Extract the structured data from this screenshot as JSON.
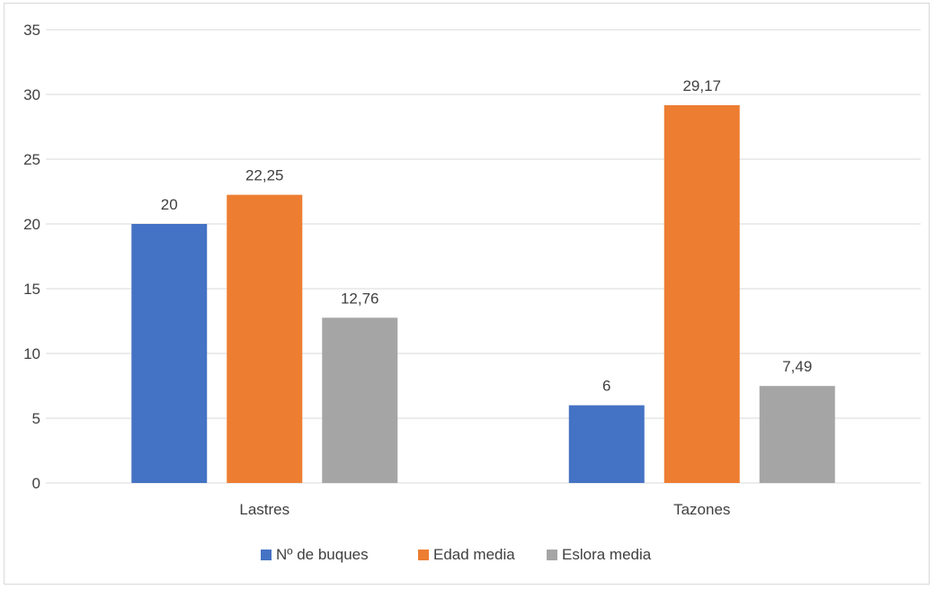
{
  "chart_data": {
    "type": "bar",
    "title": "",
    "xlabel": "",
    "ylabel": "",
    "categories": [
      "Lastres",
      "Tazones"
    ],
    "series": [
      {
        "name": "Nº de buques",
        "values": [
          20,
          6
        ],
        "labels": [
          "20",
          "6"
        ],
        "color": "#4472c4"
      },
      {
        "name": "Edad media",
        "values": [
          22.25,
          29.17
        ],
        "labels": [
          "22,25",
          "29,17"
        ],
        "color": "#ed7d31"
      },
      {
        "name": "Eslora media",
        "values": [
          12.76,
          7.49
        ],
        "labels": [
          "12,76",
          "7,49"
        ],
        "color": "#a5a5a5"
      }
    ],
    "ylim": [
      0,
      35
    ],
    "yticks": [
      0,
      5,
      10,
      15,
      20,
      25,
      30,
      35
    ],
    "ytick_labels": [
      "0",
      "5",
      "10",
      "15",
      "20",
      "25",
      "30",
      "35"
    ],
    "grid": true,
    "legend_position": "bottom"
  },
  "colors": {
    "gridline": "#d9d9d9",
    "text": "#404040",
    "frame": "#d9d9d9"
  }
}
